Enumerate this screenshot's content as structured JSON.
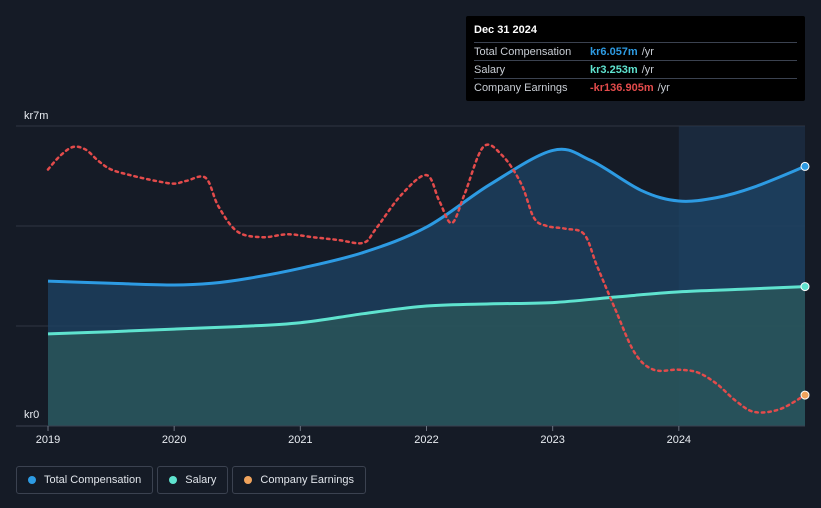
{
  "colors": {
    "background": "#151b26",
    "total_compensation": "#2d9be3",
    "salary": "#5fe3cf",
    "company_earnings": "#e34b4b",
    "company_earnings_legend": "#f0a35c",
    "grid": "#2e3542"
  },
  "tooltip": {
    "date": "Dec 31 2024",
    "rows": [
      {
        "label": "Total Compensation",
        "value": "kr6.057m",
        "unit": "/yr",
        "color": "#2d9be3"
      },
      {
        "label": "Salary",
        "value": "kr3.253m",
        "unit": "/yr",
        "color": "#5fe3cf"
      },
      {
        "label": "Company Earnings",
        "value": "-kr136.905m",
        "unit": "/yr",
        "color": "#e34b4b"
      }
    ]
  },
  "legend": [
    {
      "label": "Total Compensation",
      "color": "#2d9be3"
    },
    {
      "label": "Salary",
      "color": "#5fe3cf"
    },
    {
      "label": "Company Earnings",
      "color": "#f0a35c"
    }
  ],
  "chart_data": {
    "type": "area",
    "y_axis_labels": [
      "kr7m",
      "kr0"
    ],
    "ylim": [
      0,
      7
    ],
    "x_ticks": [
      2019,
      2020,
      2021,
      2022,
      2023,
      2024
    ],
    "xlim": [
      2019.0,
      2025.0
    ],
    "forecast_shade_from": 2024.0,
    "series": [
      {
        "name": "Total Compensation",
        "unit": "kr m",
        "x": [
          2019.0,
          2019.5,
          2020.0,
          2020.3,
          2020.6,
          2021.0,
          2021.5,
          2022.0,
          2022.5,
          2023.0,
          2023.3,
          2023.7,
          2024.0,
          2024.3,
          2024.6,
          2025.0
        ],
        "y": [
          3.38,
          3.33,
          3.29,
          3.33,
          3.45,
          3.68,
          4.05,
          4.64,
          5.63,
          6.43,
          6.2,
          5.5,
          5.25,
          5.33,
          5.58,
          6.057
        ]
      },
      {
        "name": "Salary",
        "unit": "kr m",
        "x": [
          2019.0,
          2019.5,
          2020.0,
          2020.5,
          2021.0,
          2021.5,
          2022.0,
          2022.5,
          2023.0,
          2023.5,
          2024.0,
          2024.5,
          2025.0
        ],
        "y": [
          2.15,
          2.2,
          2.26,
          2.32,
          2.41,
          2.62,
          2.8,
          2.85,
          2.88,
          3.01,
          3.13,
          3.19,
          3.253
        ]
      },
      {
        "name": "Company Earnings",
        "x": [
          2019.0,
          2019.1,
          2019.2,
          2019.3,
          2019.4,
          2019.5,
          2019.65,
          2019.85,
          2020.0,
          2020.1,
          2020.25,
          2020.35,
          2020.5,
          2020.7,
          2020.9,
          2021.1,
          2021.3,
          2021.5,
          2021.6,
          2021.8,
          2022.0,
          2022.1,
          2022.2,
          2022.3,
          2022.45,
          2022.6,
          2022.75,
          2022.85,
          2022.95,
          2023.1,
          2023.25,
          2023.35,
          2023.5,
          2023.65,
          2023.8,
          2024.0,
          2024.15,
          2024.3,
          2024.45,
          2024.6,
          2024.8,
          2025.0
        ],
        "y": [
          0.86,
          0.91,
          0.94,
          0.93,
          0.89,
          0.86,
          0.84,
          0.82,
          0.81,
          0.82,
          0.83,
          0.73,
          0.64,
          0.62,
          0.63,
          0.62,
          0.61,
          0.6,
          0.65,
          0.77,
          0.84,
          0.75,
          0.67,
          0.77,
          0.94,
          0.91,
          0.81,
          0.69,
          0.66,
          0.65,
          0.63,
          0.52,
          0.36,
          0.21,
          0.15,
          0.15,
          0.14,
          0.1,
          0.04,
          0.0,
          0.01,
          0.06
        ]
      }
    ]
  }
}
